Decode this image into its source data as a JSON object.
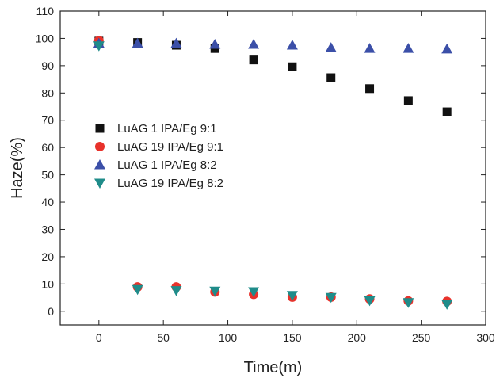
{
  "chart_data": {
    "type": "scatter",
    "title": "",
    "xlabel": "Time(m)",
    "ylabel": "Haze(%)",
    "xlim": [
      -30,
      300
    ],
    "ylim": [
      -5,
      110
    ],
    "xticks": [
      0,
      50,
      100,
      150,
      200,
      250,
      300
    ],
    "yticks": [
      0,
      10,
      20,
      30,
      40,
      50,
      60,
      70,
      80,
      90,
      100,
      110
    ],
    "grid": false,
    "legend_position": "center-left",
    "series": [
      {
        "name": "LuAG 1 IPA/Eg 9:1",
        "marker": "square",
        "color": "#111111",
        "x": [
          0,
          30,
          60,
          90,
          120,
          150,
          180,
          210,
          240,
          270
        ],
        "y": [
          99,
          98.5,
          97.5,
          96.3,
          92.1,
          89.6,
          85.6,
          81.6,
          77.2,
          73.1
        ]
      },
      {
        "name": "LuAG 19 IPA/Eg 9:1",
        "marker": "circle",
        "color": "#e8322b",
        "x": [
          0,
          30,
          60,
          90,
          120,
          150,
          180,
          210,
          240,
          270
        ],
        "y": [
          99.2,
          8.9,
          8.9,
          7.1,
          6.2,
          5.2,
          5.2,
          4.5,
          3.8,
          3.6
        ]
      },
      {
        "name": "LuAG 1 IPA/Eg 8:2",
        "marker": "triangle-up",
        "color": "#3b4fa8",
        "x": [
          0,
          30,
          60,
          90,
          120,
          150,
          180,
          210,
          240,
          270
        ],
        "y": [
          98.2,
          98.2,
          98.2,
          97.8,
          97.8,
          97.5,
          96.6,
          96.3,
          96.3,
          96.1
        ]
      },
      {
        "name": "LuAG 19 IPA/Eg 8:2",
        "marker": "triangle-down",
        "color": "#1f8c8a",
        "x": [
          0,
          30,
          60,
          90,
          120,
          150,
          180,
          210,
          240,
          270
        ],
        "y": [
          97.3,
          8,
          7.6,
          7.4,
          7.2,
          5.8,
          5.1,
          3.9,
          3.2,
          2.6
        ]
      }
    ]
  }
}
